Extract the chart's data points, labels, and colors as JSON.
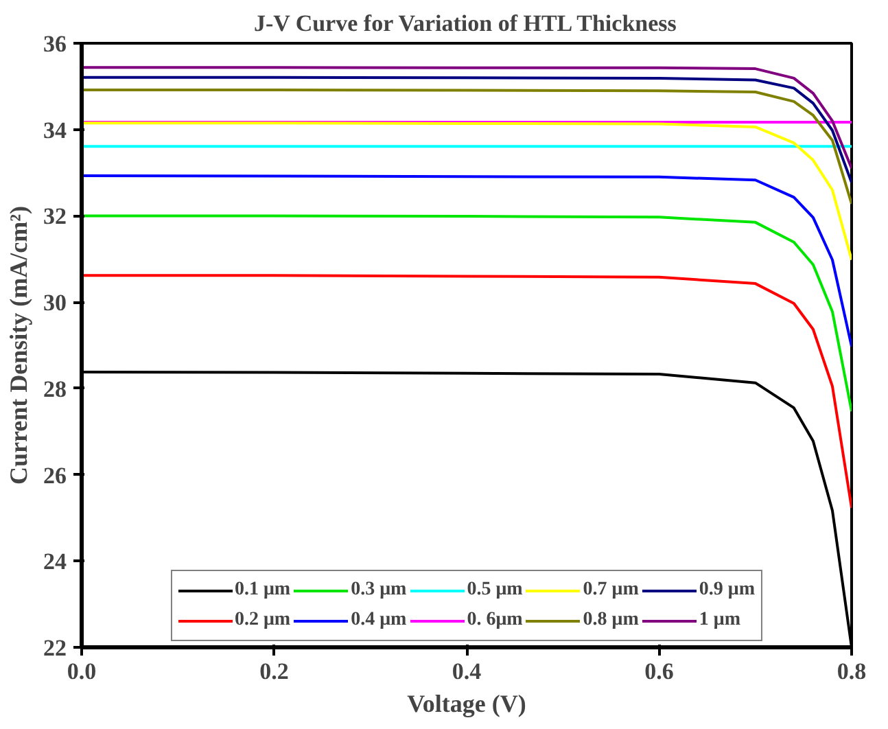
{
  "chart_data": {
    "type": "line",
    "title": "J-V Curve for Variation of HTL Thickness",
    "xlabel": "Voltage (V)",
    "ylabel": "Current Density (mA/cm²)",
    "x": [
      0,
      0.2,
      0.4,
      0.6,
      0.7,
      0.74,
      0.76,
      0.78,
      0.8
    ],
    "xlim": [
      0,
      0.8
    ],
    "xticks": [
      {
        "value": 0,
        "label": "0.0"
      },
      0.2,
      0.4,
      0.6,
      0.8
    ],
    "ylim": [
      22,
      36
    ],
    "yticks": [
      22,
      24,
      26,
      28,
      30,
      32,
      34,
      36
    ],
    "grid": false,
    "legend": "bottom",
    "line_style": "solid",
    "marker": "none",
    "series": [
      {
        "name": "0.1 μm",
        "color": "#000000",
        "values": [
          28.38,
          28.37,
          28.35,
          28.33,
          28.13,
          27.55,
          26.78,
          25.17,
          22.0
        ]
      },
      {
        "name": "0.2 μm",
        "color": "#ff0000",
        "values": [
          30.62,
          30.62,
          30.6,
          30.58,
          30.43,
          29.97,
          29.37,
          28.05,
          25.23
        ]
      },
      {
        "name": "0.3 μm",
        "color": "#00e600",
        "values": [
          32.0,
          32.0,
          31.99,
          31.97,
          31.85,
          31.39,
          30.87,
          29.78,
          27.47
        ]
      },
      {
        "name": "0.4 μm",
        "color": "#0000ff",
        "values": [
          32.93,
          32.92,
          32.91,
          32.9,
          32.83,
          32.43,
          31.96,
          30.98,
          28.97
        ]
      },
      {
        "name": "0.5 μm",
        "color": "#00ffff",
        "values": [
          33.61,
          33.61,
          33.61,
          33.61,
          33.61,
          33.61,
          33.61,
          33.61,
          33.61
        ]
      },
      {
        "name": "0. 6μm",
        "color": "#ff00ff",
        "values": [
          34.17,
          34.17,
          34.17,
          34.17,
          34.17,
          34.17,
          34.17,
          34.17,
          34.17
        ]
      },
      {
        "name": "0.7 μm",
        "color": "#ffff00",
        "values": [
          34.15,
          34.15,
          34.14,
          34.13,
          34.06,
          33.69,
          33.29,
          32.6,
          30.98
        ]
      },
      {
        "name": "0.8 μm",
        "color": "#808000",
        "values": [
          34.92,
          34.92,
          34.91,
          34.9,
          34.87,
          34.65,
          34.33,
          33.75,
          32.28
        ]
      },
      {
        "name": "0.9 μm",
        "color": "#000080",
        "values": [
          35.21,
          35.21,
          35.2,
          35.19,
          35.15,
          34.96,
          34.61,
          33.98,
          32.77
        ]
      },
      {
        "name": "1 μm",
        "color": "#800080",
        "values": [
          35.44,
          35.44,
          35.43,
          35.43,
          35.41,
          35.19,
          34.84,
          34.2,
          33.1
        ]
      }
    ]
  }
}
